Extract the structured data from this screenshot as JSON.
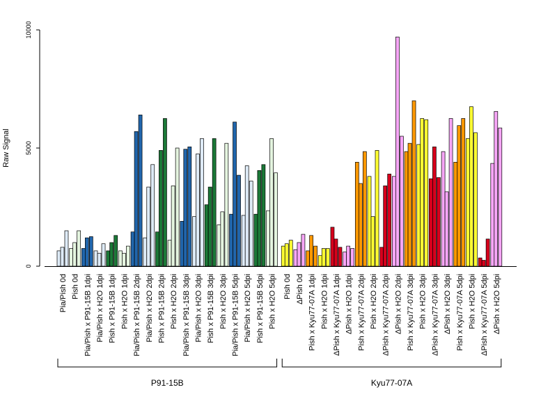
{
  "chart_data": {
    "type": "bar",
    "ylabel": "Raw Signal",
    "ylim": [
      0,
      10000
    ],
    "y_ticks": [
      0,
      5000,
      10000
    ],
    "y_tick_labels": [
      "0",
      "5000",
      "10000"
    ],
    "categories": [
      "Pia/Pish 0d",
      "Pish 0d",
      "Pia/Pish x P91-15B 1dpi",
      "Pia/Pish x H2O 1dpi",
      "Pish x P91-15B 1dpi",
      "Pish x H2O 1dpi",
      "Pia/Pish x P91-15B 2dpi",
      "Pia/Pish x H2O 2dpi",
      "Pish x P91-15B 2dpi",
      "Pish x H2O 2dpi",
      "Pia/Pish x P91-15B 3dpi",
      "Pia/Pish x H2O 3dpi",
      "Pish x P91-15B 3dpi",
      "Pish x H2O 3dpi",
      "Pia/Pish x P91-15B 5dpi",
      "Pia/Pish x H2O 5dpi",
      "Pish x P91-15B 5dpi",
      "Pish x H2O 5dpi",
      "Pish 0d",
      "ΔPish 0d",
      "Pish x Kyu77-07A 1dpi",
      "Pish x H2O 1dpi",
      "ΔPish x Kyu77-07A 1dpi",
      "ΔPish x H2O 1dpi",
      "Pish x Kyu77-07A 2dpi",
      "Pish x H2O 2dpi",
      "ΔPish x Kyu77-07A 2dpi",
      "ΔPish x H2O 2dpi",
      "Pish x Kyu77-07A 3dpi",
      "Pish x H2O 3dpi",
      "ΔPish x Kyu77-07A 3dpi",
      "ΔPish x H2O 3dpi",
      "Pish x Kyu77-07A 5dpi",
      "Pish x H2O 5dpi",
      "ΔPish x Kyu77-07A 5dpi",
      "ΔPish x H2O 5dpi"
    ],
    "values": [
      [
        650,
        800,
        1500
      ],
      [
        750,
        1000,
        1500
      ],
      [
        750,
        1200,
        1250
      ],
      [
        650,
        550,
        950
      ],
      [
        650,
        1000,
        1300
      ],
      [
        650,
        550,
        850
      ],
      [
        1450,
        5700,
        6400
      ],
      [
        1200,
        3350,
        4300
      ],
      [
        1450,
        4900,
        6250
      ],
      [
        1100,
        3400,
        5000
      ],
      [
        1900,
        4950,
        5050
      ],
      [
        2100,
        4750,
        5400
      ],
      [
        2600,
        3350,
        5400
      ],
      [
        1750,
        2300,
        5200
      ],
      [
        2200,
        6100,
        3850
      ],
      [
        2150,
        4250,
        3600
      ],
      [
        2200,
        4050,
        4300
      ],
      [
        2350,
        5400,
        3950
      ],
      [
        850,
        950,
        1100
      ],
      [
        700,
        1000,
        1350
      ],
      [
        650,
        1300,
        850
      ],
      [
        450,
        750,
        750
      ],
      [
        1650,
        1150,
        800
      ],
      [
        600,
        850,
        750
      ],
      [
        4400,
        3500,
        4850
      ],
      [
        3800,
        2100,
        4900
      ],
      [
        800,
        3400,
        3900
      ],
      [
        3800,
        9700,
        5500
      ],
      [
        4850,
        5200,
        7000
      ],
      [
        5150,
        6250,
        6200
      ],
      [
        3700,
        5050,
        3750
      ],
      [
        4850,
        3150,
        6250
      ],
      [
        4400,
        5950,
        6250
      ],
      [
        5400,
        6750,
        5650
      ],
      [
        350,
        250,
        1150
      ],
      [
        4350,
        6550,
        5850
      ]
    ],
    "bar_colors": [
      "#deebf7",
      "#e5f5e0",
      "#2166ac",
      "#deebf7",
      "#1b7837",
      "#e5f5e0",
      "#2166ac",
      "#deebf7",
      "#1b7837",
      "#e5f5e0",
      "#2166ac",
      "#deebf7",
      "#1b7837",
      "#e5f5e0",
      "#2166ac",
      "#deebf7",
      "#1b7837",
      "#e5f5e0",
      "#ffff33",
      "#f7a6f7",
      "#ff9900",
      "#ffff33",
      "#d7001c",
      "#f7a6f7",
      "#ff9900",
      "#ffff33",
      "#d7001c",
      "#f7a6f7",
      "#ff9900",
      "#ffff33",
      "#d7001c",
      "#f7a6f7",
      "#ff9900",
      "#ffff33",
      "#d7001c",
      "#f7a6f7"
    ],
    "groups": [
      {
        "label": "P91-15B",
        "from": 0,
        "to": 17
      },
      {
        "label": "Kyu77-07A",
        "from": 18,
        "to": 35
      }
    ]
  }
}
